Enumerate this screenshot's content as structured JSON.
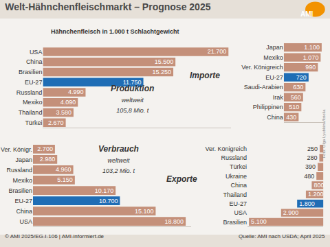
{
  "title": "Welt-Hähnchenfleischmarkt – Prognose 2025",
  "subtitle": "Hähnchenfleisch in 1.000 t Schlachtgewicht",
  "logo": "AMI",
  "footer_left": "© AMI 2025/EG-I-106 | AMI-informiert.de",
  "footer_right": "Quelle: AMI nach USDA; April 2025",
  "photo_credit": "Foto: Olga Lyubkina/fotolia",
  "chart_data": [
    {
      "type": "bar",
      "title": "Produktion",
      "subtitle": "weltweit 105,8 Mio. t",
      "orientation": "horizontal",
      "categories": [
        "USA",
        "China",
        "Brasilien",
        "EU-27",
        "Russland",
        "Mexiko",
        "Thailand",
        "Türkei"
      ],
      "values": [
        21700,
        15500,
        15250,
        11750,
        4990,
        4090,
        3580,
        2670
      ],
      "value_labels": [
        "21.700",
        "15.500",
        "15.250",
        "11.750",
        "4.990",
        "4.090",
        "3.580",
        "2.670"
      ],
      "colors": [
        "#c4907a",
        "#c4907a",
        "#c4907a",
        "#1f6db5",
        "#c4907a",
        "#c4907a",
        "#c4907a",
        "#c4907a"
      ],
      "xlim": [
        0,
        22000
      ],
      "data_labels": true,
      "tick_labels": "y",
      "grid": false
    },
    {
      "type": "bar",
      "title": "Importe",
      "orientation": "horizontal",
      "categories": [
        "Japan",
        "Mexiko",
        "Ver. Königreich",
        "EU-27",
        "Saudi-Arabien",
        "Irak",
        "Philippinen",
        "China"
      ],
      "values": [
        1100,
        1070,
        990,
        720,
        630,
        560,
        510,
        430
      ],
      "value_labels": [
        "1.100",
        "1.070",
        "990",
        "720",
        "630",
        "560",
        "510",
        "430"
      ],
      "colors": [
        "#c4907a",
        "#c4907a",
        "#c4907a",
        "#1f6db5",
        "#c4907a",
        "#c4907a",
        "#c4907a",
        "#c4907a"
      ],
      "xlim": [
        0,
        1150
      ],
      "data_labels": true,
      "tick_labels": "y",
      "grid": false
    },
    {
      "type": "bar",
      "title": "Verbrauch",
      "subtitle": "weltweit 103,2 Mio. t",
      "orientation": "horizontal",
      "categories": [
        "Ver. Königr.",
        "Japan",
        "Russland",
        "Mexiko",
        "Brasilien",
        "EU-27",
        "China",
        "USA"
      ],
      "values": [
        2700,
        2980,
        4960,
        5150,
        10170,
        10700,
        15100,
        18800
      ],
      "value_labels": [
        "2.700",
        "2.980",
        "4.960",
        "5.150",
        "10.170",
        "10.700",
        "15.100",
        "18.800"
      ],
      "colors": [
        "#c4907a",
        "#c4907a",
        "#c4907a",
        "#c4907a",
        "#c4907a",
        "#1f6db5",
        "#c4907a",
        "#c4907a"
      ],
      "xlim": [
        0,
        19500
      ],
      "data_labels": true,
      "tick_labels": "y",
      "grid": false
    },
    {
      "type": "bar",
      "title": "Exporte",
      "orientation": "horizontal",
      "categories": [
        "Ver. Königreich",
        "Russland",
        "Türkei",
        "Ukraine",
        "China",
        "Thailand",
        "EU-27",
        "USA",
        "Brasilien"
      ],
      "values": [
        250,
        280,
        390,
        480,
        800,
        1200,
        1800,
        2900,
        5100
      ],
      "value_labels": [
        "250",
        "280",
        "390",
        "480",
        "800",
        "1.200",
        "1.800",
        "2.900",
        "5.100"
      ],
      "colors": [
        "#c4907a",
        "#c4907a",
        "#c4907a",
        "#c4907a",
        "#c4907a",
        "#c4907a",
        "#1f6db5",
        "#c4907a",
        "#c4907a"
      ],
      "xlim": [
        5200,
        0
      ],
      "data_labels": true,
      "tick_labels": "y",
      "grid": false
    }
  ]
}
